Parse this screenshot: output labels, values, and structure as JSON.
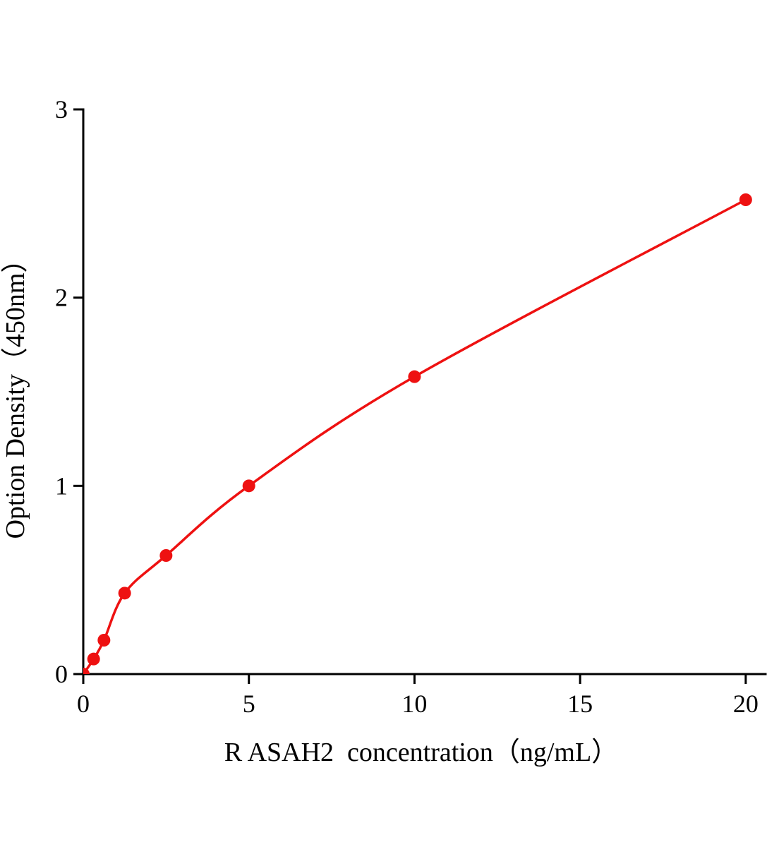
{
  "chart_data": {
    "type": "scatter",
    "title": "",
    "xlabel": "R ASAH2  concentration（ng/mL）",
    "ylabel": "Option Density（450nm）",
    "x": [
      0,
      0.313,
      0.625,
      1.25,
      2.5,
      5,
      10,
      20
    ],
    "y": [
      0,
      0.08,
      0.18,
      0.43,
      0.63,
      1.0,
      1.58,
      2.52
    ],
    "x_ticks": [
      0,
      5,
      10,
      15,
      20
    ],
    "y_ticks": [
      0,
      1,
      2,
      3
    ],
    "xlim": [
      0,
      20.6
    ],
    "ylim": [
      0,
      3
    ],
    "curve": "smooth",
    "grid": false,
    "legend": "none",
    "line_color": "#ee1111",
    "marker_color": "#ee1111",
    "axis_color": "#000000",
    "background": "#ffffff"
  }
}
